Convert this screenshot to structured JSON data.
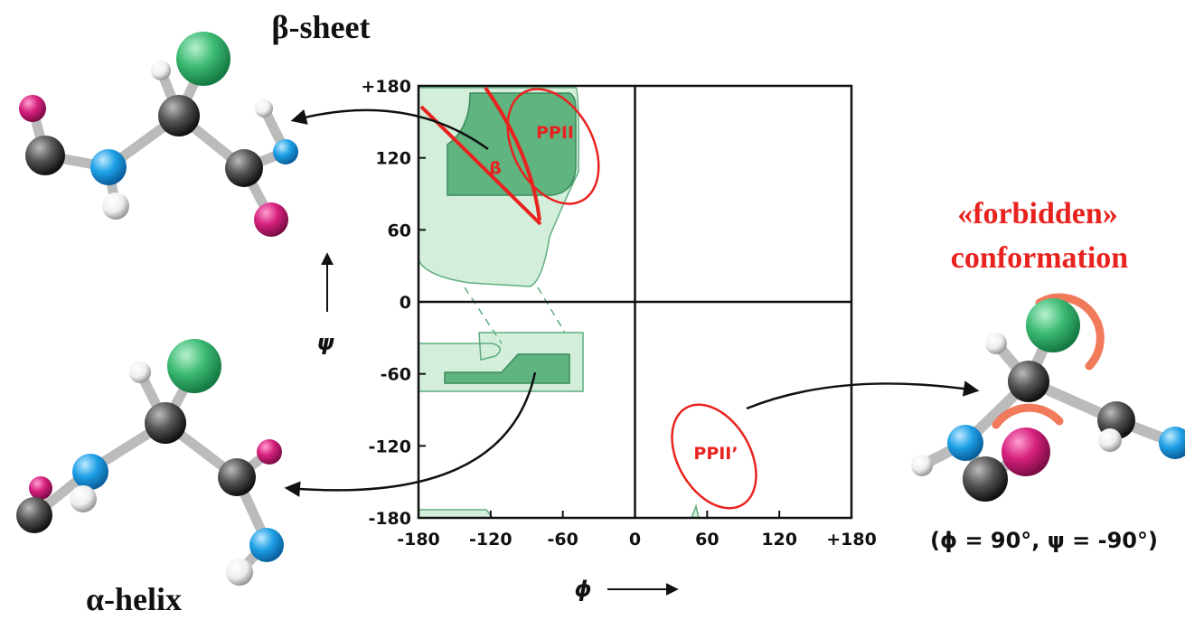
{
  "titles": {
    "beta_sheet": "β-sheet",
    "alpha_helix": "α-helix",
    "forbidden_line1": "«forbidden»",
    "forbidden_line2": "conformation",
    "forbidden_angles": "(ϕ = 90°, ψ = -90°)"
  },
  "plot": {
    "xlabel": "ϕ",
    "ylabel": "ψ",
    "xlim": [
      -180,
      180
    ],
    "ylim": [
      -180,
      180
    ],
    "xticks": [
      -180,
      -120,
      -60,
      0,
      60,
      120,
      {
        "value": 180,
        "label": "+180"
      }
    ],
    "yticks": [
      -180,
      -120,
      -60,
      0,
      60,
      120,
      {
        "value": 180,
        "label": "+180"
      }
    ],
    "regions": {
      "beta": "β",
      "ppii": "PPII",
      "ppii_prime": "PPII’"
    }
  }
}
